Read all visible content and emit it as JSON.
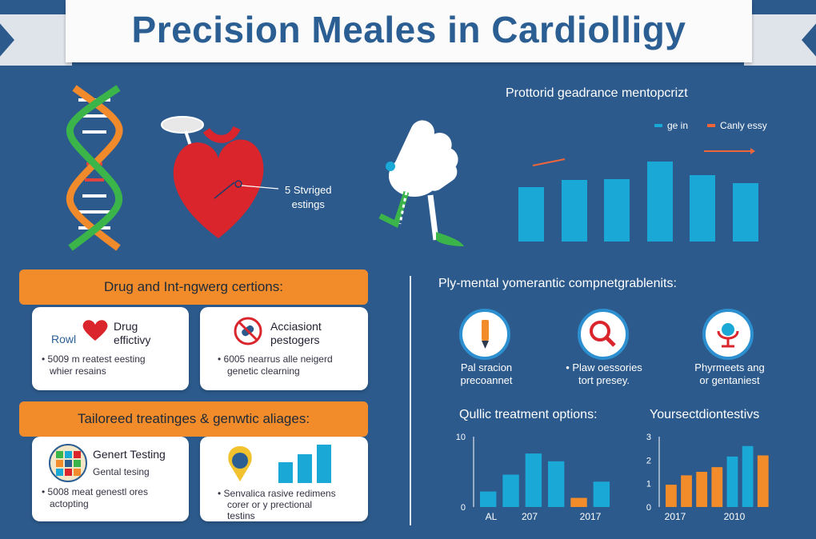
{
  "title": "Precision Meales in Cardiolligy",
  "heart_label": {
    "line1": "5 Stvriged",
    "line2": "estings"
  },
  "top_chart": {
    "title": "Prottorid geadrance mentopcrizt",
    "legend": [
      {
        "label": "ge in",
        "color": "#1aa9d6"
      },
      {
        "label": "Canly essy",
        "color": "#f0663a"
      }
    ]
  },
  "left_section_1": {
    "header": "Drug and Int-ngwerg certions:",
    "cards": [
      {
        "icon_text": "Rowl",
        "icon": "heart-icon",
        "title_line1": "Drug",
        "title_line2": "effictivy",
        "bullet_line1": "• 5009 m reatest eesting",
        "bullet_line2": "whier resains"
      },
      {
        "icon": "no-drugs-icon",
        "title_line1": "Acciasiont",
        "title_line2": "pestogers",
        "bullet_line1": "• 6005 nearrus alle neigerd",
        "bullet_line2": "genetic clearning"
      }
    ]
  },
  "left_section_2": {
    "header": "Tailoreed treatinges & genwtic aliages:",
    "cards": [
      {
        "icon": "genome-grid-icon",
        "title_line1": "Genert Testing",
        "title_line2": "Gental tesing",
        "bullet_line1": "• 5008 meat genestl ores",
        "bullet_line2": "actopting"
      },
      {
        "icon": "bar-chart-icon",
        "bullet_line1": "• Senvalica rasive redimens",
        "bullet_line2": "corer or y prectional",
        "bullet_line3": "testins"
      }
    ]
  },
  "right_section": {
    "header": "Ply-mental yomerantic compnetgrablenits:",
    "items": [
      {
        "icon": "pencil-icon",
        "line1": "Pal sracion",
        "line2": "precoannet"
      },
      {
        "icon": "magnifier-icon",
        "line1": "• Plaw oessories",
        "line2": "tort presey."
      },
      {
        "icon": "microscope-icon",
        "line1": "Phyrmeets ang",
        "line2": "or gentaniest"
      }
    ]
  },
  "chart_data": [
    {
      "type": "bar",
      "title": "Prottorid geadrance mentopcrizt",
      "series": [
        {
          "name": "ge in",
          "values": [
            55,
            62,
            63,
            80,
            67,
            59
          ]
        }
      ],
      "ylim": [
        0,
        100
      ]
    },
    {
      "type": "bar",
      "title": "Qullic treatment options:",
      "ytick_labels": [
        "10",
        "0"
      ],
      "xtick_labels": [
        "AL",
        "207",
        "2017"
      ],
      "ylim": [
        0,
        10
      ],
      "series": [
        {
          "name": "blue",
          "color": "#1aa9d6",
          "values": [
            2.2,
            4.6,
            7.6,
            6.5,
            0.4,
            3.6
          ]
        },
        {
          "name": "orange",
          "color": "#f28c2b",
          "values": [
            0,
            0,
            0,
            0,
            1.3,
            0
          ]
        }
      ]
    },
    {
      "type": "bar",
      "title": "Yoursectdiontestivs",
      "ytick_labels": [
        "3",
        "2",
        "1",
        "0"
      ],
      "xtick_labels": [
        "2017",
        "2010"
      ],
      "ylim": [
        0,
        3
      ],
      "series": [
        {
          "name": "values",
          "values": [
            0.95,
            1.35,
            1.5,
            1.7,
            2.15,
            2.6,
            2.2
          ]
        }
      ],
      "colors": [
        "#f28c2b",
        "#f28c2b",
        "#f28c2b",
        "#f28c2b",
        "#1aa9d6",
        "#1aa9d6",
        "#f28c2b"
      ]
    }
  ]
}
